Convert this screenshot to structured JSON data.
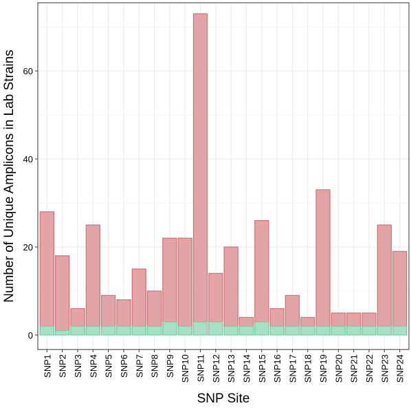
{
  "chart_data": {
    "type": "bar",
    "categories": [
      "SNP1",
      "SNP2",
      "SNP3",
      "SNP4",
      "SNP5",
      "SNP6",
      "SNP7",
      "SNP8",
      "SNP9",
      "SNP10",
      "SNP11",
      "SNP12",
      "SNP13",
      "SNP14",
      "SNP15",
      "SNP16",
      "SNP17",
      "SNP18",
      "SNP19",
      "SNP20",
      "SNP21",
      "SNP22",
      "SNP23",
      "SNP24"
    ],
    "series": [
      {
        "values": [
          28,
          18,
          6,
          25,
          9,
          8,
          15,
          10,
          22,
          22,
          73,
          14,
          20,
          4,
          26,
          6,
          9,
          4,
          33,
          5,
          5,
          5,
          25,
          19
        ],
        "color": "#e3a4a7",
        "stroke": "#d46f72"
      },
      {
        "values": [
          2,
          1,
          2,
          2,
          2,
          2,
          2,
          2,
          3,
          2,
          3,
          3,
          2,
          2,
          3,
          2,
          2,
          2,
          2,
          2,
          2,
          2,
          2,
          2
        ],
        "color": "#a8e0c6",
        "stroke": "#6fcf9f"
      }
    ],
    "stacked": false,
    "xlabel": "SNP Site",
    "ylabel": "Number of Unique Amplicons in Lab Strains",
    "ylim": [
      -3.3,
      75.5
    ],
    "yticks": [
      0,
      20,
      40,
      60
    ],
    "grid": true,
    "legend": "none"
  }
}
